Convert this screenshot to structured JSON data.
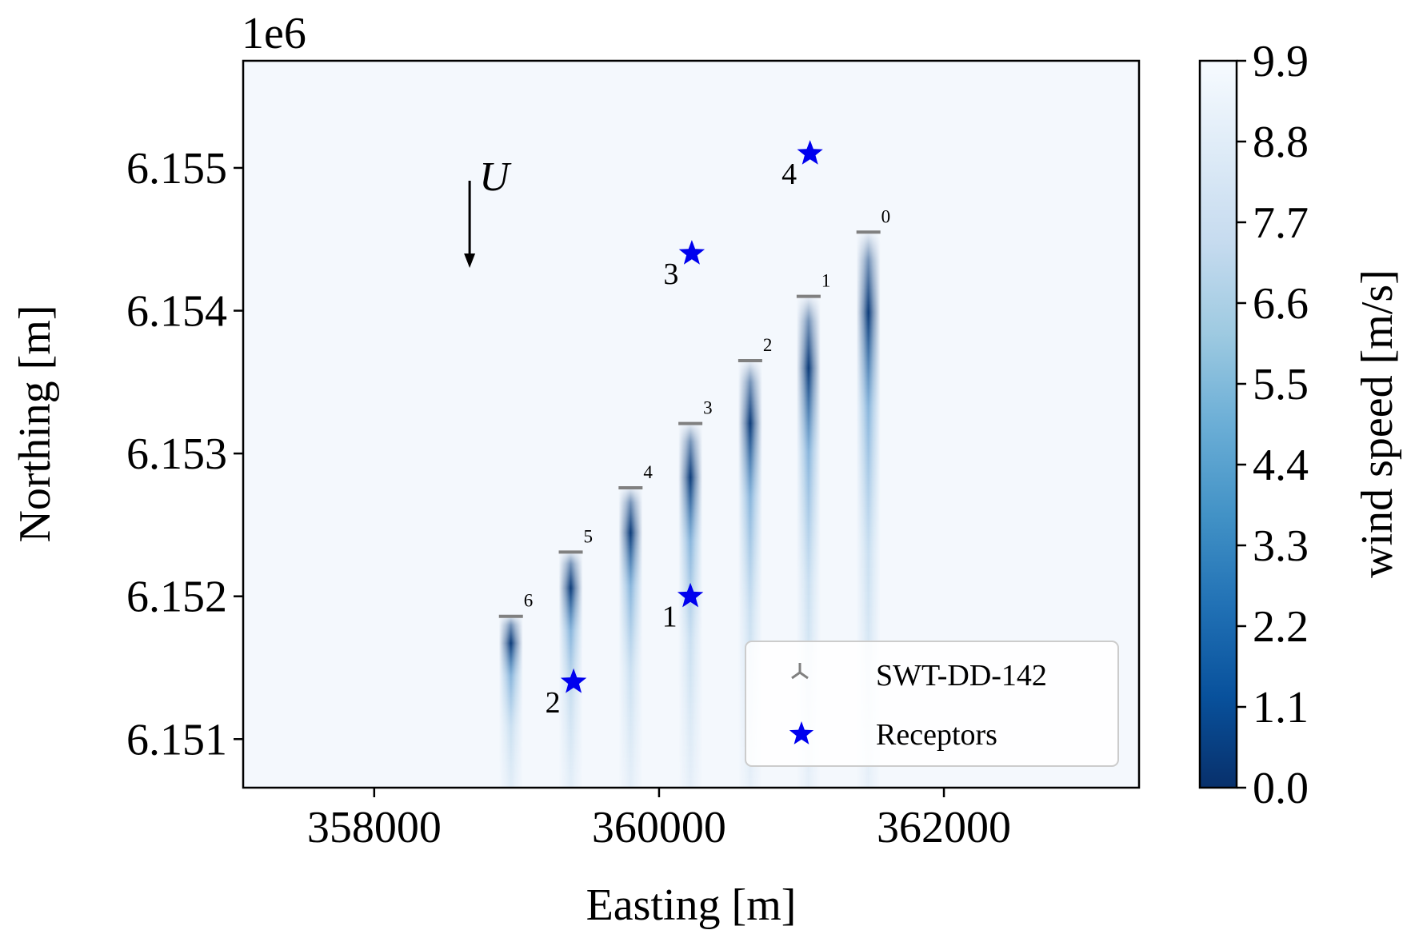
{
  "chart_data": {
    "type": "heatmap",
    "xlabel": "Easting [m]",
    "ylabel": "Northing [m]",
    "y_offset_text": "1e6",
    "xlim": [
      357080,
      363370
    ],
    "ylim": [
      6.15066,
      6.15575
    ],
    "xticks": [
      358000,
      360000,
      362000
    ],
    "xtick_labels": [
      "358000",
      "360000",
      "362000"
    ],
    "yticks": [
      6.151,
      6.152,
      6.153,
      6.154,
      6.155
    ],
    "ytick_labels": [
      "6.151",
      "6.152",
      "6.153",
      "6.154",
      "6.155"
    ],
    "colorbar": {
      "label": "wind speed [m/s]",
      "range": [
        0.0,
        9.9
      ],
      "ticks": [
        0.0,
        1.1,
        2.2,
        3.3,
        4.4,
        5.5,
        6.6,
        7.7,
        8.8,
        9.9
      ],
      "tick_labels": [
        "0.0",
        "1.1",
        "2.2",
        "3.3",
        "4.4",
        "5.5",
        "6.6",
        "7.7",
        "8.8",
        "9.9"
      ],
      "colormap": "Blues_r"
    },
    "wind_direction": {
      "label": "U",
      "direction": "north-to-south",
      "x": 358670,
      "y_start": 6.15491,
      "y_end": 6.1543
    },
    "turbines": [
      {
        "id": "0",
        "x": 361470,
        "y": 6.15455
      },
      {
        "id": "1",
        "x": 361050,
        "y": 6.1541
      },
      {
        "id": "2",
        "x": 360640,
        "y": 6.15365
      },
      {
        "id": "3",
        "x": 360220,
        "y": 6.15321
      },
      {
        "id": "4",
        "x": 359800,
        "y": 6.15276
      },
      {
        "id": "5",
        "x": 359380,
        "y": 6.15231
      },
      {
        "id": "6",
        "x": 358960,
        "y": 6.15186
      }
    ],
    "receptors": [
      {
        "id": "1",
        "x": 360220,
        "y": 6.152
      },
      {
        "id": "2",
        "x": 359400,
        "y": 6.1514
      },
      {
        "id": "3",
        "x": 360230,
        "y": 6.1544
      },
      {
        "id": "4",
        "x": 361060,
        "y": 6.1551
      }
    ],
    "legend": {
      "position": "lower-right",
      "entries": [
        {
          "label": "SWT-DD-142",
          "marker": "tri-down"
        },
        {
          "label": "Receptors",
          "marker": "star"
        }
      ]
    }
  },
  "colors": {
    "background_field": "#f4f8fd",
    "wake_core": "#0b3f7f",
    "turbine_marker": "#808080",
    "receptor_marker": "#0000ee",
    "axes": "#000000"
  }
}
